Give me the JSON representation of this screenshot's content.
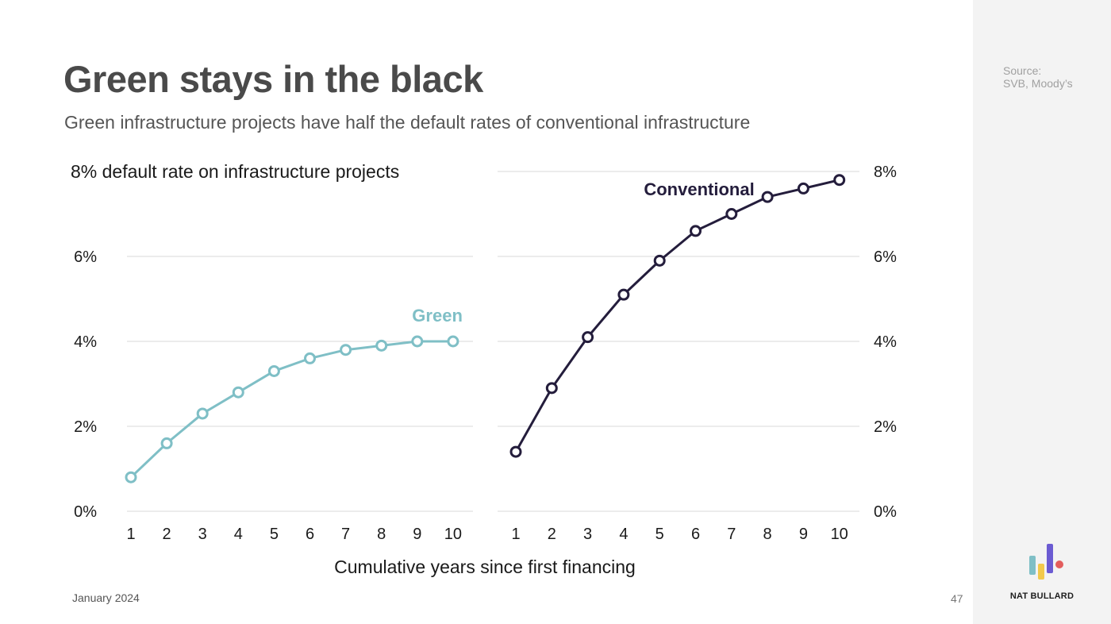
{
  "header": {
    "title": "Green stays in the black",
    "subtitle": "Green infrastructure projects have half the default rates of conventional infrastructure"
  },
  "sidebar": {
    "source_label": "Source:",
    "source_text": "SVB, Moody’s",
    "brand": "NAT BULLARD"
  },
  "footer": {
    "date": "January 2024",
    "page_number": "47"
  },
  "colors": {
    "green": "#7fbfc6",
    "conventional": "#241d3c",
    "grid": "#d9d9d9",
    "logo": [
      "#7fbfc6",
      "#f2c94c",
      "#6b5bd2",
      "#e35d5d"
    ]
  },
  "chart_data": [
    {
      "type": "line",
      "ylabel": "default rate on infrastructure projects",
      "y_tick_labels": [
        "0%",
        "2%",
        "4%",
        "6%",
        "8%"
      ],
      "ylim": [
        0,
        8
      ],
      "y_axis_position": "left",
      "xlabel": "Cumulative years since first financing",
      "x": [
        1,
        2,
        3,
        4,
        5,
        6,
        7,
        8,
        9,
        10
      ],
      "series": [
        {
          "name": "Green",
          "values": [
            0.8,
            1.6,
            2.3,
            2.8,
            3.3,
            3.6,
            3.8,
            3.9,
            4.0,
            4.0
          ]
        }
      ],
      "grid": true
    },
    {
      "type": "line",
      "y_tick_labels": [
        "0%",
        "2%",
        "4%",
        "6%",
        "8%"
      ],
      "ylim": [
        0,
        8
      ],
      "y_axis_position": "right",
      "x": [
        1,
        2,
        3,
        4,
        5,
        6,
        7,
        8,
        9,
        10
      ],
      "series": [
        {
          "name": "Conventional",
          "values": [
            1.4,
            2.9,
            4.1,
            5.1,
            5.9,
            6.6,
            7.0,
            7.4,
            7.6,
            7.8
          ]
        }
      ],
      "grid": true
    }
  ]
}
